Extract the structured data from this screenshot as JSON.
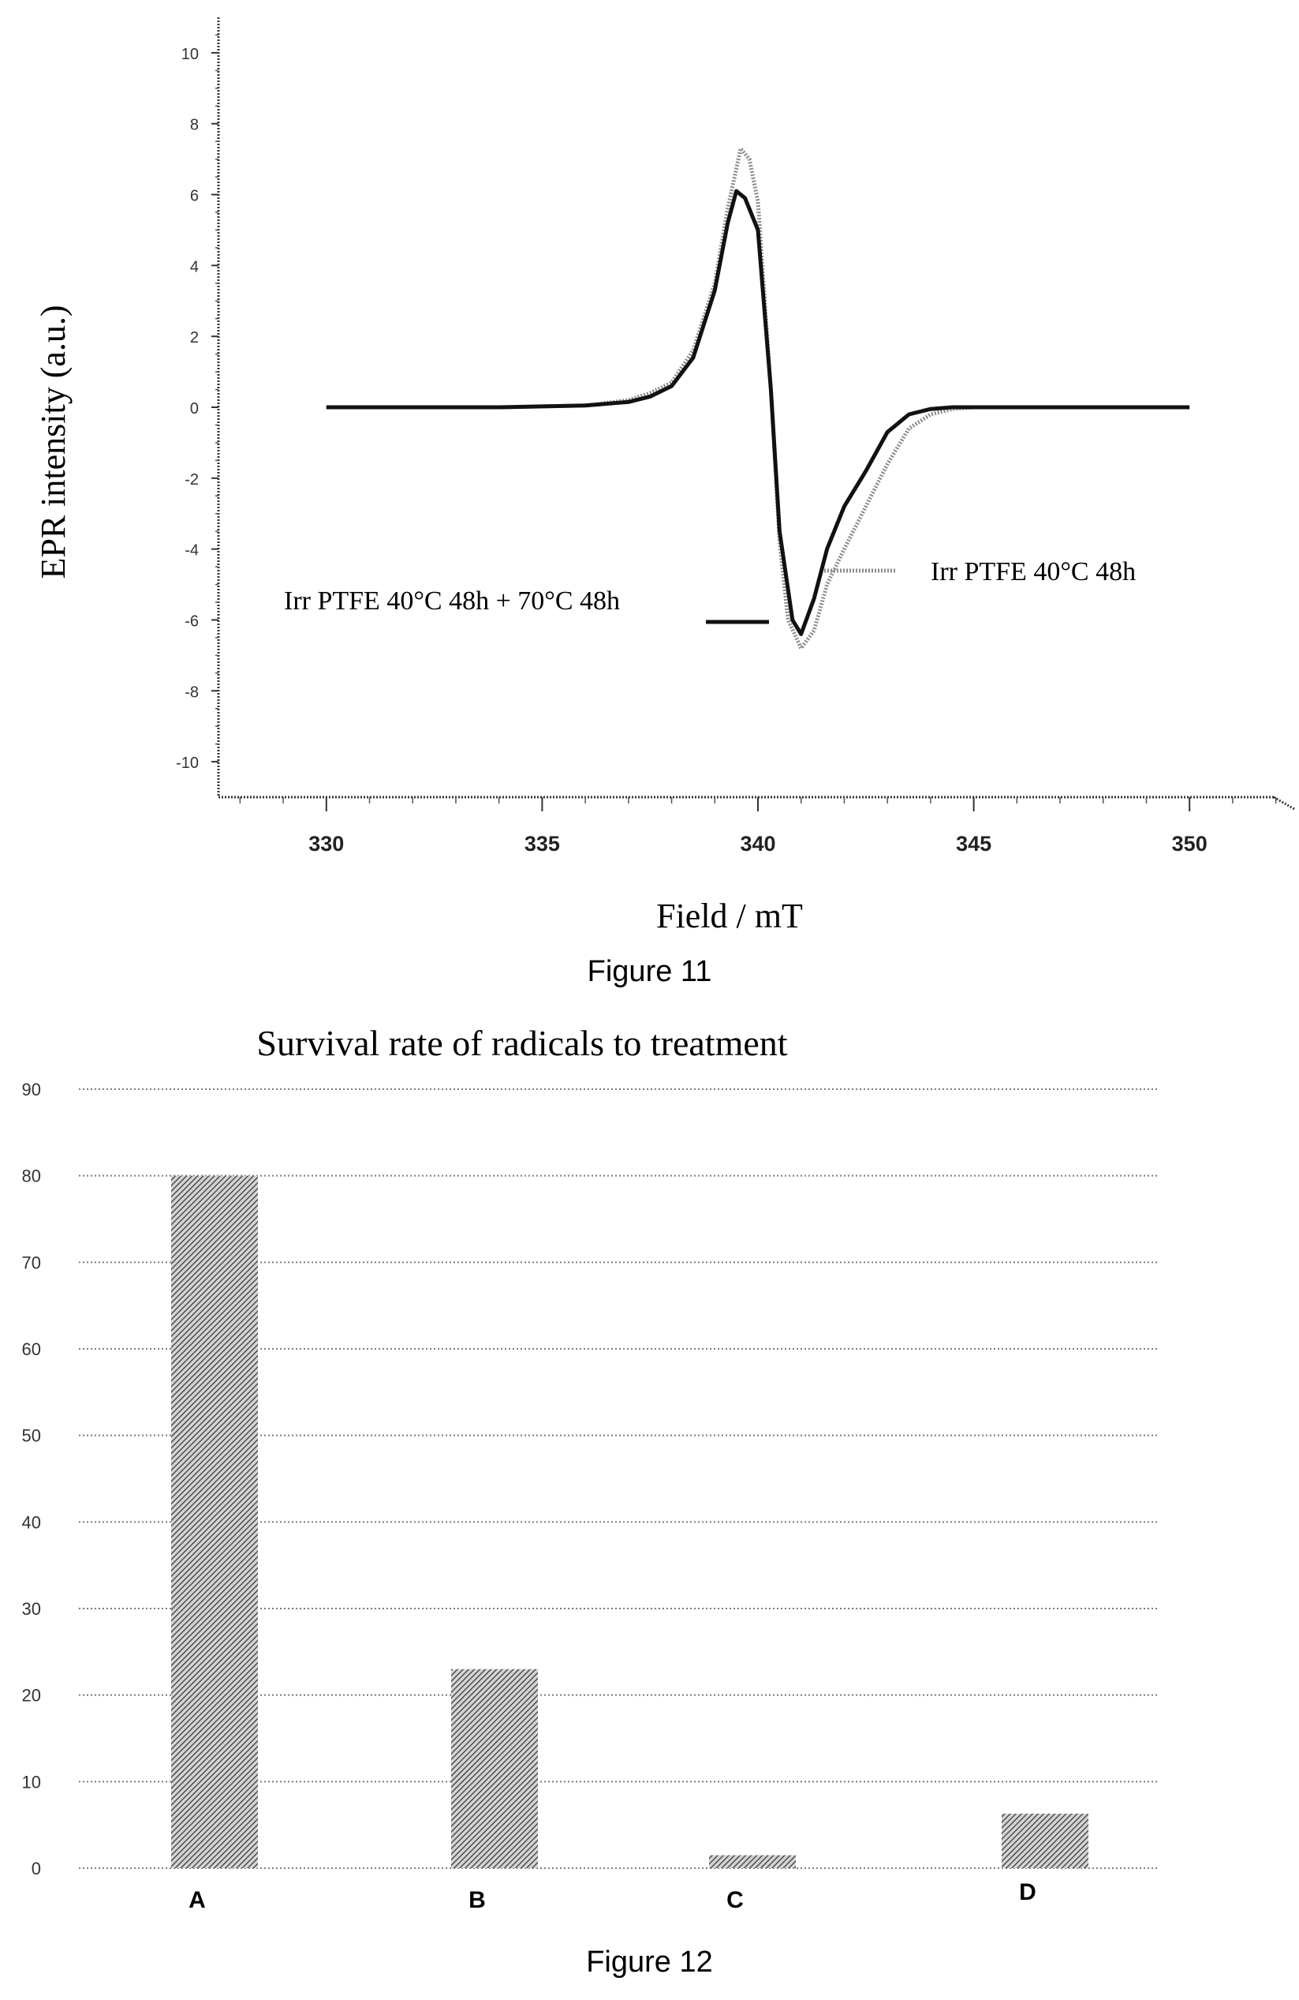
{
  "chart_data": [
    {
      "type": "line",
      "caption": "Figure 11",
      "xlabel": "Field / mT",
      "ylabel": "EPR intensity (a.u.)",
      "xlim": [
        327.5,
        352.5
      ],
      "ylim": [
        -11,
        11
      ],
      "xticks": [
        330,
        335,
        340,
        345,
        350
      ],
      "yticks": [
        10,
        8,
        6,
        4,
        2,
        0,
        -2,
        -4,
        -6,
        -8,
        -10
      ],
      "series": [
        {
          "name": "Irr PTFE 40°C 48h",
          "style": "dotted-gray",
          "color": "#8c8c8c",
          "x": [
            330,
            334,
            336,
            337,
            337.5,
            338,
            338.5,
            339,
            339.3,
            339.6,
            339.8,
            340,
            340.3,
            340.5,
            340.7,
            341,
            341.3,
            341.6,
            342,
            342.5,
            343,
            343.5,
            344,
            344.5,
            345,
            347,
            350
          ],
          "y": [
            0,
            0,
            0.05,
            0.2,
            0.4,
            0.7,
            1.6,
            3.5,
            5.6,
            7.3,
            7.0,
            5.8,
            0.5,
            -3.8,
            -6.0,
            -6.8,
            -6.3,
            -5.0,
            -4.0,
            -2.8,
            -1.6,
            -0.6,
            -0.2,
            -0.05,
            0,
            0,
            0
          ]
        },
        {
          "name": "Irr PTFE 40°C 48h + 70°C 48h",
          "style": "solid-black",
          "color": "#111111",
          "x": [
            330,
            334,
            336,
            337,
            337.5,
            338,
            338.5,
            339,
            339.3,
            339.5,
            339.7,
            340,
            340.3,
            340.5,
            340.8,
            341,
            341.3,
            341.6,
            342,
            342.5,
            343,
            343.5,
            344,
            344.5,
            345,
            347,
            350
          ],
          "y": [
            0,
            0,
            0.05,
            0.15,
            0.3,
            0.6,
            1.4,
            3.3,
            5.2,
            6.1,
            5.9,
            5.0,
            0.5,
            -3.5,
            -6.0,
            -6.4,
            -5.4,
            -4.0,
            -2.8,
            -1.8,
            -0.7,
            -0.2,
            -0.05,
            0,
            0,
            0,
            0
          ]
        }
      ],
      "legend": [
        {
          "label": "Irr PTFE 40°C 48h",
          "position": "right"
        },
        {
          "label": "Irr PTFE 40°C 48h + 70°C 48h",
          "position": "left"
        }
      ]
    },
    {
      "type": "bar",
      "caption": "Figure 12",
      "title": "Survival rate of radicals to treatment",
      "categories": [
        "A",
        "B",
        "C",
        "D"
      ],
      "values": [
        80,
        23,
        1.5,
        6.3
      ],
      "ylim": [
        0,
        90
      ],
      "yticks": [
        0,
        10,
        20,
        30,
        40,
        50,
        60,
        70,
        80,
        90
      ],
      "grid": true
    }
  ]
}
